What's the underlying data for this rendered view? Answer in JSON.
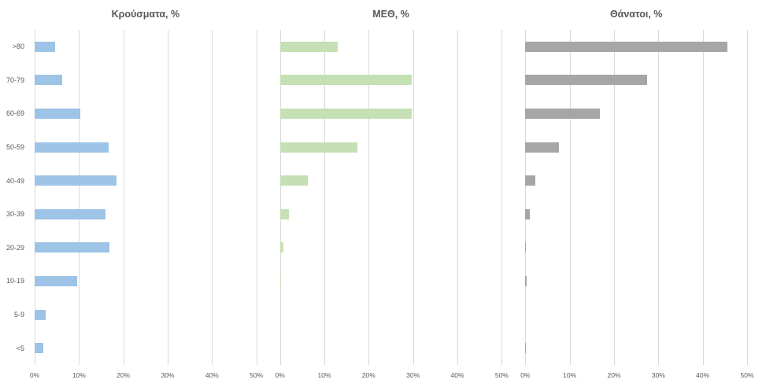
{
  "y_axis": {
    "categories": [
      ">80",
      "70-79",
      "60-69",
      "50-59",
      "40-49",
      "30-39",
      "20-29",
      "10-19",
      "5-9",
      "<5"
    ]
  },
  "chart_data": [
    {
      "type": "bar",
      "orientation": "horizontal",
      "title": "Κρούσματα, %",
      "color": "#9DC3E6",
      "categories": [
        ">80",
        "70-79",
        "60-69",
        "50-59",
        "40-49",
        "30-39",
        "20-29",
        "10-19",
        "5-9",
        "<5"
      ],
      "values": [
        4.7,
        6.3,
        10.3,
        16.6,
        18.5,
        15.9,
        16.9,
        9.5,
        2.5,
        1.9
      ],
      "xlim": [
        0,
        50
      ],
      "x_ticks": [
        "0%",
        "10%",
        "20%",
        "30%",
        "40%",
        "50%"
      ],
      "grid": true,
      "legend": "none"
    },
    {
      "type": "bar",
      "orientation": "horizontal",
      "title": "ΜΕΘ, %",
      "color": "#C5E0B4",
      "categories": [
        ">80",
        "70-79",
        "60-69",
        "50-59",
        "40-49",
        "30-39",
        "20-29",
        "10-19",
        "5-9",
        "<5"
      ],
      "values": [
        13,
        29.7,
        29.7,
        17.5,
        6.3,
        2,
        0.7,
        0.3,
        0,
        0
      ],
      "xlim": [
        0,
        50
      ],
      "x_ticks": [
        "0%",
        "10%",
        "20%",
        "30%",
        "40%",
        "50%"
      ],
      "grid": true,
      "legend": "none"
    },
    {
      "type": "bar",
      "orientation": "horizontal",
      "title": "Θάνατοι, %",
      "color": "#A6A6A6",
      "categories": [
        ">80",
        "70-79",
        "60-69",
        "50-59",
        "40-49",
        "30-39",
        "20-29",
        "10-19",
        "5-9",
        "<5"
      ],
      "values": [
        45.6,
        27.5,
        16.8,
        7.5,
        2.2,
        1,
        0.2,
        0.3,
        0,
        0.2
      ],
      "xlim": [
        0,
        50
      ],
      "x_ticks": [
        "0%",
        "10%",
        "20%",
        "30%",
        "40%",
        "50%"
      ],
      "grid": true,
      "legend": "none"
    }
  ]
}
